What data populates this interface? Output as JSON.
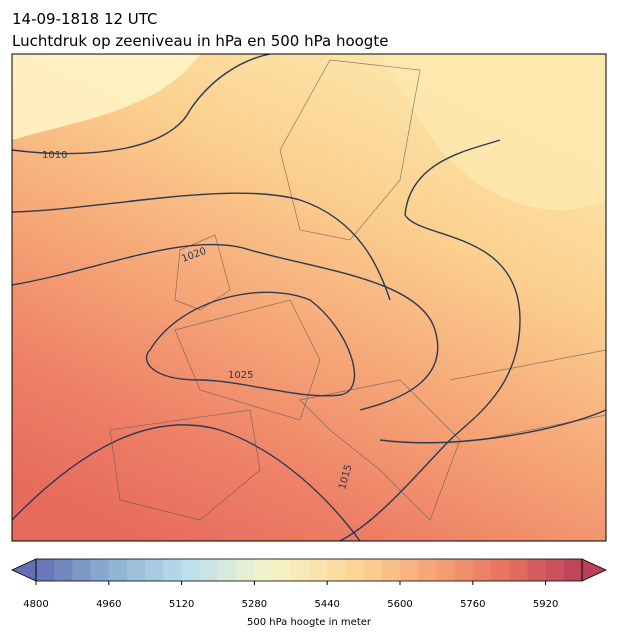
{
  "header": {
    "date": "14-09-1818 12 UTC",
    "title": "Luchtdruk op zeeniveau in hPa en 500 hPa hoogte"
  },
  "map": {
    "contour_labels": [
      "1010",
      "1020",
      "1025",
      "1015"
    ]
  },
  "colorbar": {
    "label": "500 hPa hoogte in meter",
    "lim": [
      4800,
      6000
    ],
    "step": 40,
    "ticks": [
      4800,
      4960,
      5120,
      5280,
      5440,
      5600,
      5760,
      5920
    ],
    "colormap": [
      "#6470b4",
      "#8fb3d6",
      "#bfe1ec",
      "#f7f5c8",
      "#fcd99a",
      "#f6a97a",
      "#e8735f",
      "#b8405a"
    ]
  }
}
